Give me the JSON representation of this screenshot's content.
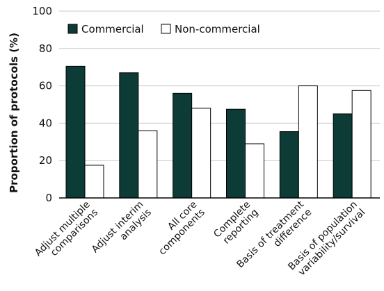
{
  "chart_data": {
    "type": "bar",
    "title": "",
    "xlabel": "",
    "ylabel": "Proportion of protocols (%)",
    "ylim": [
      0,
      100
    ],
    "yticks": [
      0,
      20,
      40,
      60,
      80,
      100
    ],
    "grid": "horizontal",
    "legend_position": "top-left",
    "categories": [
      [
        "Adjust multiple",
        "comparisons"
      ],
      [
        "Adjust interim",
        "analysis"
      ],
      [
        "All core",
        "components"
      ],
      [
        "Complete",
        "reporting"
      ],
      [
        "Basis of treatment",
        "difference"
      ],
      [
        "Basis of population",
        "variability/survival"
      ]
    ],
    "series": [
      {
        "name": "Commercial",
        "color": "#0d3b36",
        "values": [
          70.5,
          67,
          56,
          47.5,
          35.5,
          45
        ]
      },
      {
        "name": "Non-commercial",
        "color": "#ffffff",
        "values": [
          17.5,
          36,
          48,
          29,
          60,
          57.5
        ]
      }
    ]
  }
}
